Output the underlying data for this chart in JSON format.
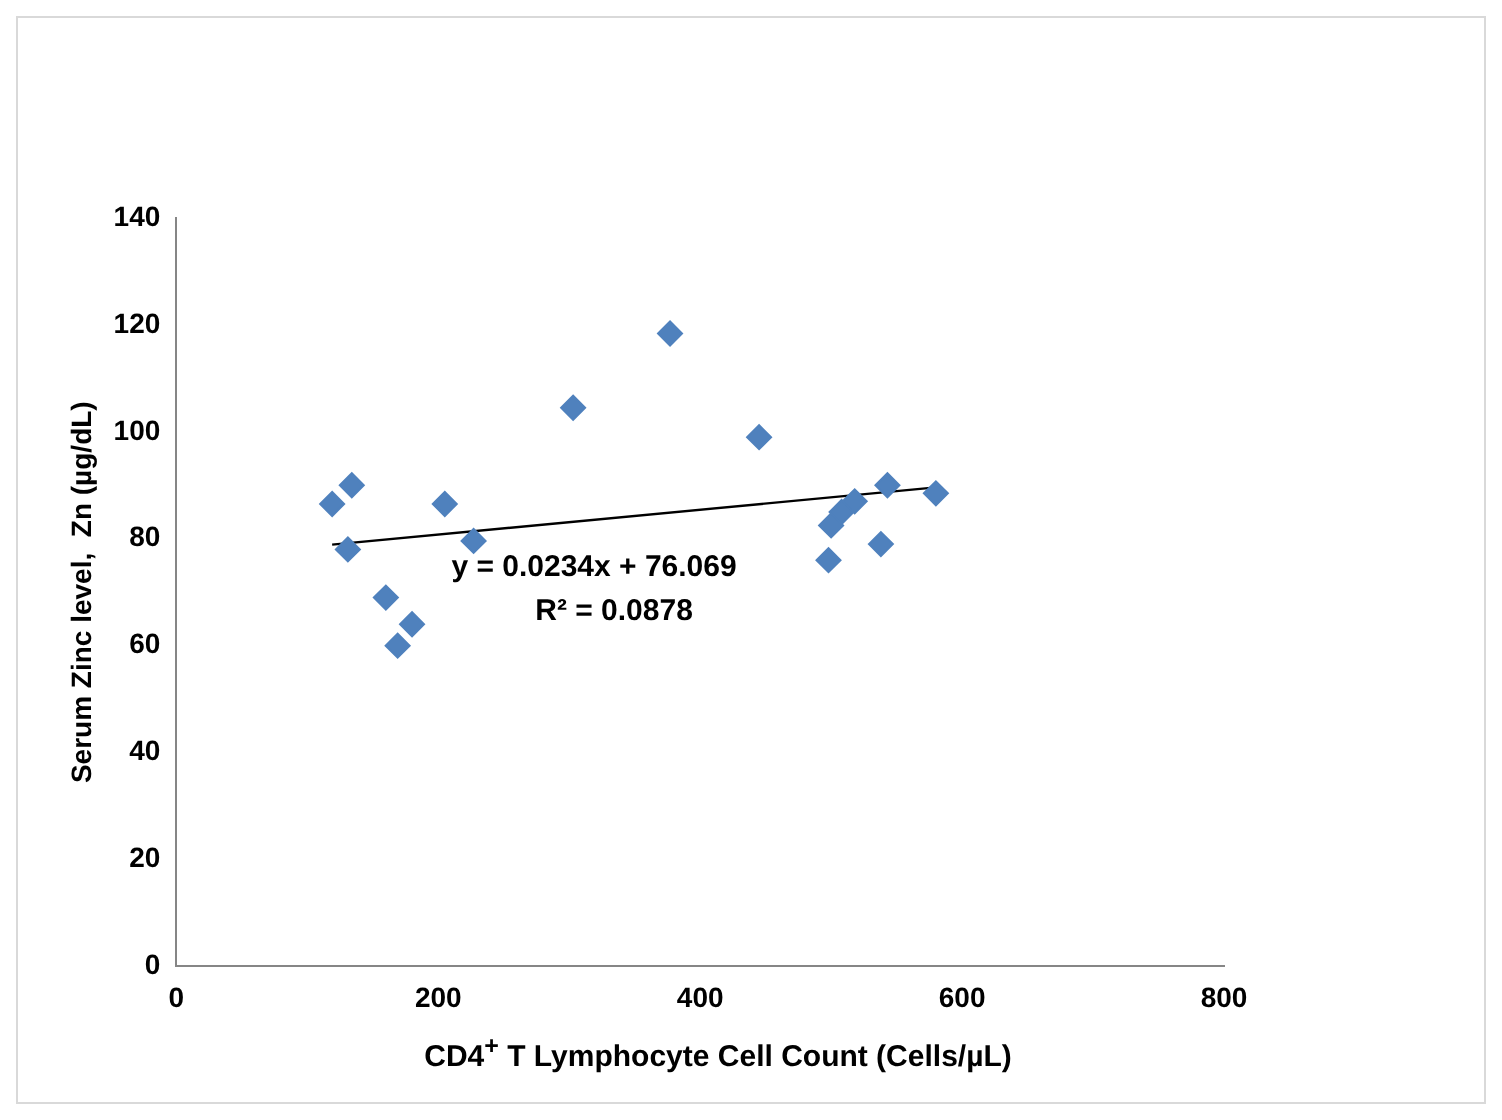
{
  "chart_data": {
    "type": "scatter",
    "xlabel": "CD4$^{+}$ T Lymphocyte Cell Count (Cells/µL)",
    "ylabel": "Serum Zinc level,  Zn (µg/dL)",
    "grid": false,
    "xlim": [
      0,
      800
    ],
    "xticks": [
      0,
      200,
      400,
      600,
      800
    ],
    "ylim": [
      0,
      140
    ],
    "yticks": [
      0,
      20,
      40,
      60,
      80,
      100,
      120,
      140
    ],
    "annotations": [
      "y = 0.0234x + 76.069",
      "R² = 0.0878"
    ],
    "series": [
      {
        "color": "#4f81bd",
        "marker": "diamond",
        "x": [
          119,
          134,
          131,
          160,
          169,
          180,
          205,
          227,
          303,
          377,
          445,
          498,
          500,
          508,
          518,
          538,
          543,
          580
        ],
        "values": [
          86.5,
          90,
          78,
          69,
          60,
          64,
          86.5,
          79.6,
          104.5,
          118.4,
          99,
          76,
          82.5,
          85,
          87,
          79,
          90,
          88.5
        ]
      },
      {
        "type": "line",
        "color": "#000000",
        "marker": "none",
        "x": [
          119,
          580
        ],
        "values": [
          78.9,
          89.6
        ]
      }
    ]
  }
}
